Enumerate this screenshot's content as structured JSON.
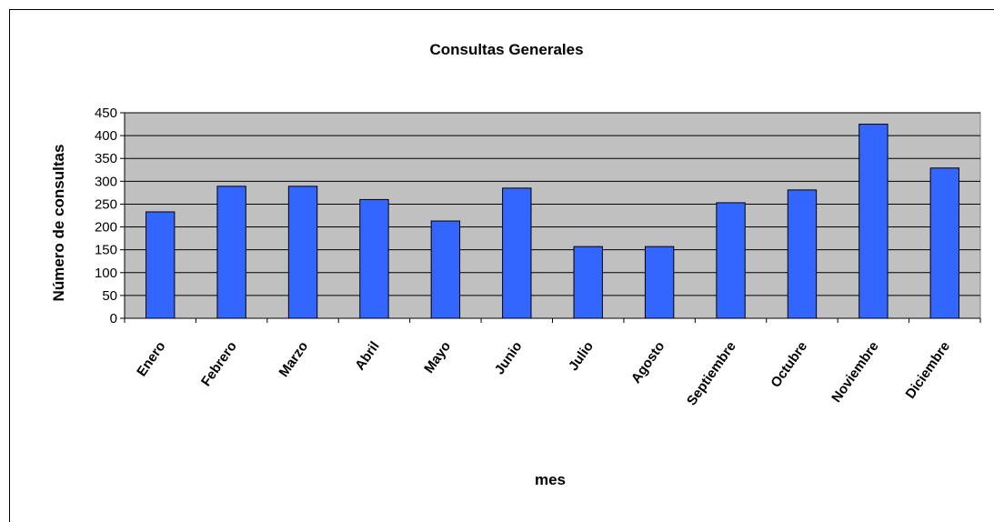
{
  "chart_data": {
    "type": "bar",
    "title": "Consultas Generales",
    "xlabel": "mes",
    "ylabel": "Número de consultas",
    "categories": [
      "Enero",
      "Febrero",
      "Marzo",
      "Abril",
      "Mayo",
      "Junio",
      "Julio",
      "Agosto",
      "Septiembre",
      "Octubre",
      "Noviembre",
      "Diciembre"
    ],
    "values": [
      233,
      289,
      289,
      260,
      213,
      285,
      157,
      157,
      253,
      281,
      425,
      329
    ],
    "ylim": [
      0,
      450
    ],
    "yticks": [
      0,
      50,
      100,
      150,
      200,
      250,
      300,
      350,
      400,
      450
    ],
    "grid": true,
    "legend": "none",
    "colors": {
      "bar": "#3366ff",
      "plot_bg": "#c0c0c0",
      "grid": "#000000"
    }
  }
}
